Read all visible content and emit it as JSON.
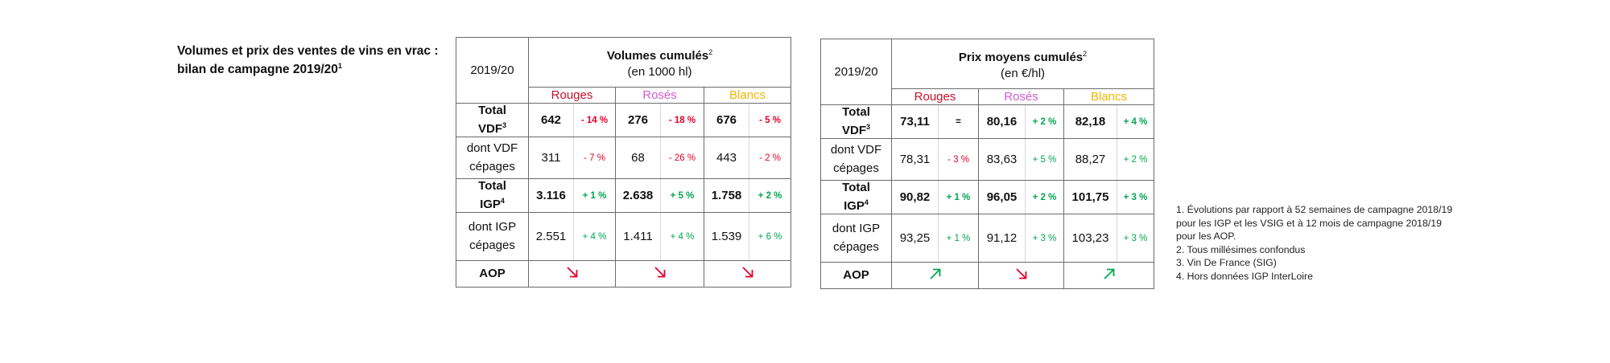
{
  "title": {
    "line1": "Volumes et prix des ventes de vins en vrac :",
    "line2": "bilan de campagne 2019/20",
    "sup": "1"
  },
  "colors": {
    "rouges": "#c8102e",
    "roses": "#d25bd1",
    "blancs": "#efb600",
    "negative": "#e4002b",
    "positive": "#00a651",
    "arrow_down": "#e4002b",
    "arrow_up": "#00a651"
  },
  "volumes": {
    "year": "2019/20",
    "header_title": "Volumes cumulés",
    "header_sup": "2",
    "header_unit": "(en 1000 hl)",
    "categories": [
      "Rouges",
      "Rosés",
      "Blancs"
    ],
    "rows": [
      {
        "label1": "Total",
        "label2": "VDF",
        "label_sup": "3",
        "bold": true,
        "cells": [
          {
            "value": "642",
            "pct": "- 14 %",
            "sign": "neg"
          },
          {
            "value": "276",
            "pct": "- 18 %",
            "sign": "neg"
          },
          {
            "value": "676",
            "pct": "- 5 %",
            "sign": "neg"
          }
        ]
      },
      {
        "label1": "dont VDF",
        "label2": "cépages",
        "label_sup": "",
        "bold": false,
        "cells": [
          {
            "value": "311",
            "pct": "- 7 %",
            "sign": "neg"
          },
          {
            "value": "68",
            "pct": "- 26 %",
            "sign": "neg"
          },
          {
            "value": "443",
            "pct": "- 2 %",
            "sign": "neg"
          }
        ]
      },
      {
        "label1": "Total",
        "label2": "IGP",
        "label_sup": "4",
        "bold": true,
        "cells": [
          {
            "value": "3.116",
            "pct": "+ 1 %",
            "sign": "pos"
          },
          {
            "value": "2.638",
            "pct": "+ 5 %",
            "sign": "pos"
          },
          {
            "value": "1.758",
            "pct": "+ 2 %",
            "sign": "pos"
          }
        ]
      },
      {
        "label1": "dont IGP",
        "label2": "cépages",
        "label_sup": "",
        "bold": false,
        "cells": [
          {
            "value": "2.551",
            "pct": "+ 4 %",
            "sign": "pos"
          },
          {
            "value": "1.411",
            "pct": "+ 4 %",
            "sign": "pos"
          },
          {
            "value": "1.539",
            "pct": "+ 6 %",
            "sign": "pos"
          }
        ]
      }
    ],
    "aop_label": "AOP",
    "aop_arrows": [
      "arrow-down-right",
      "arrow-down-right",
      "arrow-down-right"
    ]
  },
  "prix": {
    "year": "2019/20",
    "header_title": "Prix moyens cumulés",
    "header_sup": "2",
    "header_unit": "(en €/hl)",
    "categories": [
      "Rouges",
      "Rosés",
      "Blancs"
    ],
    "rows": [
      {
        "label1": "Total",
        "label2": "VDF",
        "label_sup": "3",
        "bold": true,
        "cells": [
          {
            "value": "73,11",
            "pct": "=",
            "sign": "eq"
          },
          {
            "value": "80,16",
            "pct": "+ 2 %",
            "sign": "pos"
          },
          {
            "value": "82,18",
            "pct": "+ 4 %",
            "sign": "pos"
          }
        ]
      },
      {
        "label1": "dont VDF",
        "label2": "cépages",
        "label_sup": "",
        "bold": false,
        "cells": [
          {
            "value": "78,31",
            "pct": "- 3 %",
            "sign": "neg"
          },
          {
            "value": "83,63",
            "pct": "+ 5 %",
            "sign": "pos"
          },
          {
            "value": "88,27",
            "pct": "+ 2 %",
            "sign": "pos"
          }
        ]
      },
      {
        "label1": "Total",
        "label2": "IGP",
        "label_sup": "4",
        "bold": true,
        "cells": [
          {
            "value": "90,82",
            "pct": "+ 1 %",
            "sign": "pos"
          },
          {
            "value": "96,05",
            "pct": "+ 2 %",
            "sign": "pos"
          },
          {
            "value": "101,75",
            "pct": "+ 3 %",
            "sign": "pos"
          }
        ]
      },
      {
        "label1": "dont IGP",
        "label2": "cépages",
        "label_sup": "",
        "bold": false,
        "cells": [
          {
            "value": "93,25",
            "pct": "+ 1 %",
            "sign": "pos"
          },
          {
            "value": "91,12",
            "pct": "+ 3 %",
            "sign": "pos"
          },
          {
            "value": "103,23",
            "pct": "+ 3 %",
            "sign": "pos"
          }
        ]
      }
    ],
    "aop_label": "AOP",
    "aop_arrows": [
      "arrow-up-right",
      "arrow-down-right",
      "arrow-up-right"
    ]
  },
  "footnotes": [
    "1. Évolutions par rapport à 52 semaines de campagne 2018/19",
    "pour les IGP et les VSIG et à 12 mois de campagne 2018/19",
    "pour les AOP.",
    "2. Tous millésimes confondus",
    "3. Vin De France (SIG)",
    "4. Hors données IGP InterLoire"
  ]
}
